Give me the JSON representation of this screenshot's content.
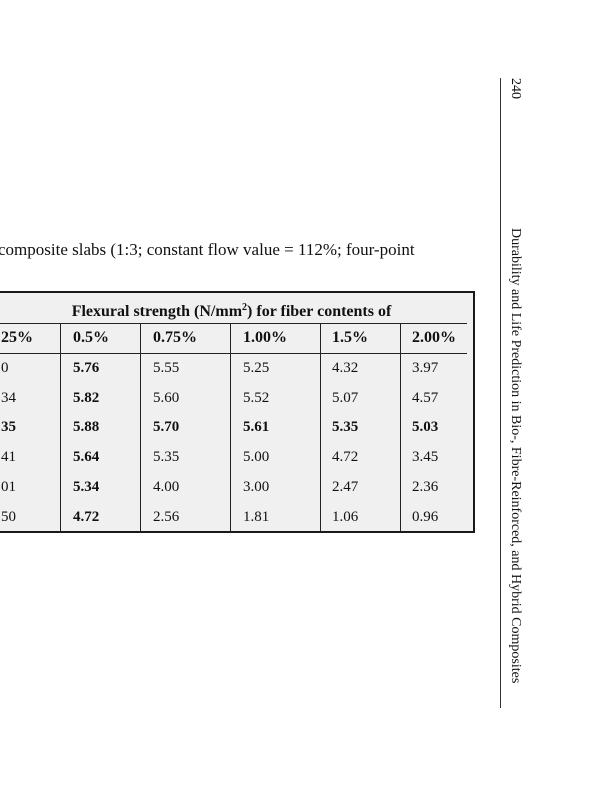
{
  "caption": "composite slabs (1:3; constant flow value = 112%; four-point",
  "table": {
    "span_header_pre": "Flexural strength (N/mm",
    "span_header_sup": "2",
    "span_header_post": ") for fiber contents of",
    "columns": [
      "25%",
      "0.5%",
      "0.75%",
      "1.00%",
      "1.5%",
      "2.00%"
    ],
    "rows": [
      [
        "0",
        "5.76",
        "5.55",
        "5.25",
        "4.32",
        "3.97"
      ],
      [
        "34",
        "5.82",
        "5.60",
        "5.52",
        "5.07",
        "4.57"
      ],
      [
        "35",
        "5.88",
        "5.70",
        "5.61",
        "5.35",
        "5.03"
      ],
      [
        "41",
        "5.64",
        "5.35",
        "5.00",
        "4.72",
        "3.45"
      ],
      [
        "01",
        "5.34",
        "4.00",
        "3.00",
        "2.47",
        "2.36"
      ],
      [
        "50",
        "4.72",
        "2.56",
        "1.81",
        "1.06",
        "0.96"
      ]
    ]
  },
  "running_head": {
    "page_number": "240",
    "title": "Durability and Life Prediction in Bio-, Fibre-Reinforced, and Hybrid Composites"
  }
}
